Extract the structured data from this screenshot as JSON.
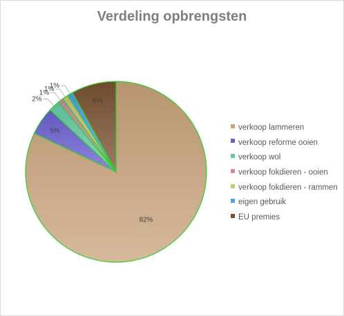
{
  "chart_data": {
    "type": "pie",
    "title": "Verdeling opbrengsten",
    "legend_position": "right",
    "slices": [
      {
        "name": "verkoop lammeren",
        "value": 82,
        "label": "82%",
        "color": "#c8a27a"
      },
      {
        "name": "verkoop reforme ooien",
        "value": 5,
        "label": "5%",
        "color": "#6a5fd0"
      },
      {
        "name": "verkoop wol",
        "value": 2,
        "label": "2%",
        "color": "#66c9a4"
      },
      {
        "name": "verkoop fokdieren - ooien",
        "value": 1,
        "label": "1%",
        "color": "#c98aa0"
      },
      {
        "name": "verkoop fokdieren - rammen",
        "value": 1,
        "label": "1%",
        "color": "#c9c47a"
      },
      {
        "name": "eigen gebruik",
        "value": 1,
        "label": "1%",
        "color": "#4f9fe6"
      },
      {
        "name": "EU premies",
        "value": 8,
        "label": "8%",
        "color": "#7a5230"
      }
    ]
  },
  "legend_labels": [
    "verkoop lammeren",
    "verkoop reforme ooien",
    "verkoop wol",
    "verkoop fokdieren - ooien",
    "verkoop fokdieren - rammen",
    "eigen gebruik",
    "EU premies"
  ]
}
